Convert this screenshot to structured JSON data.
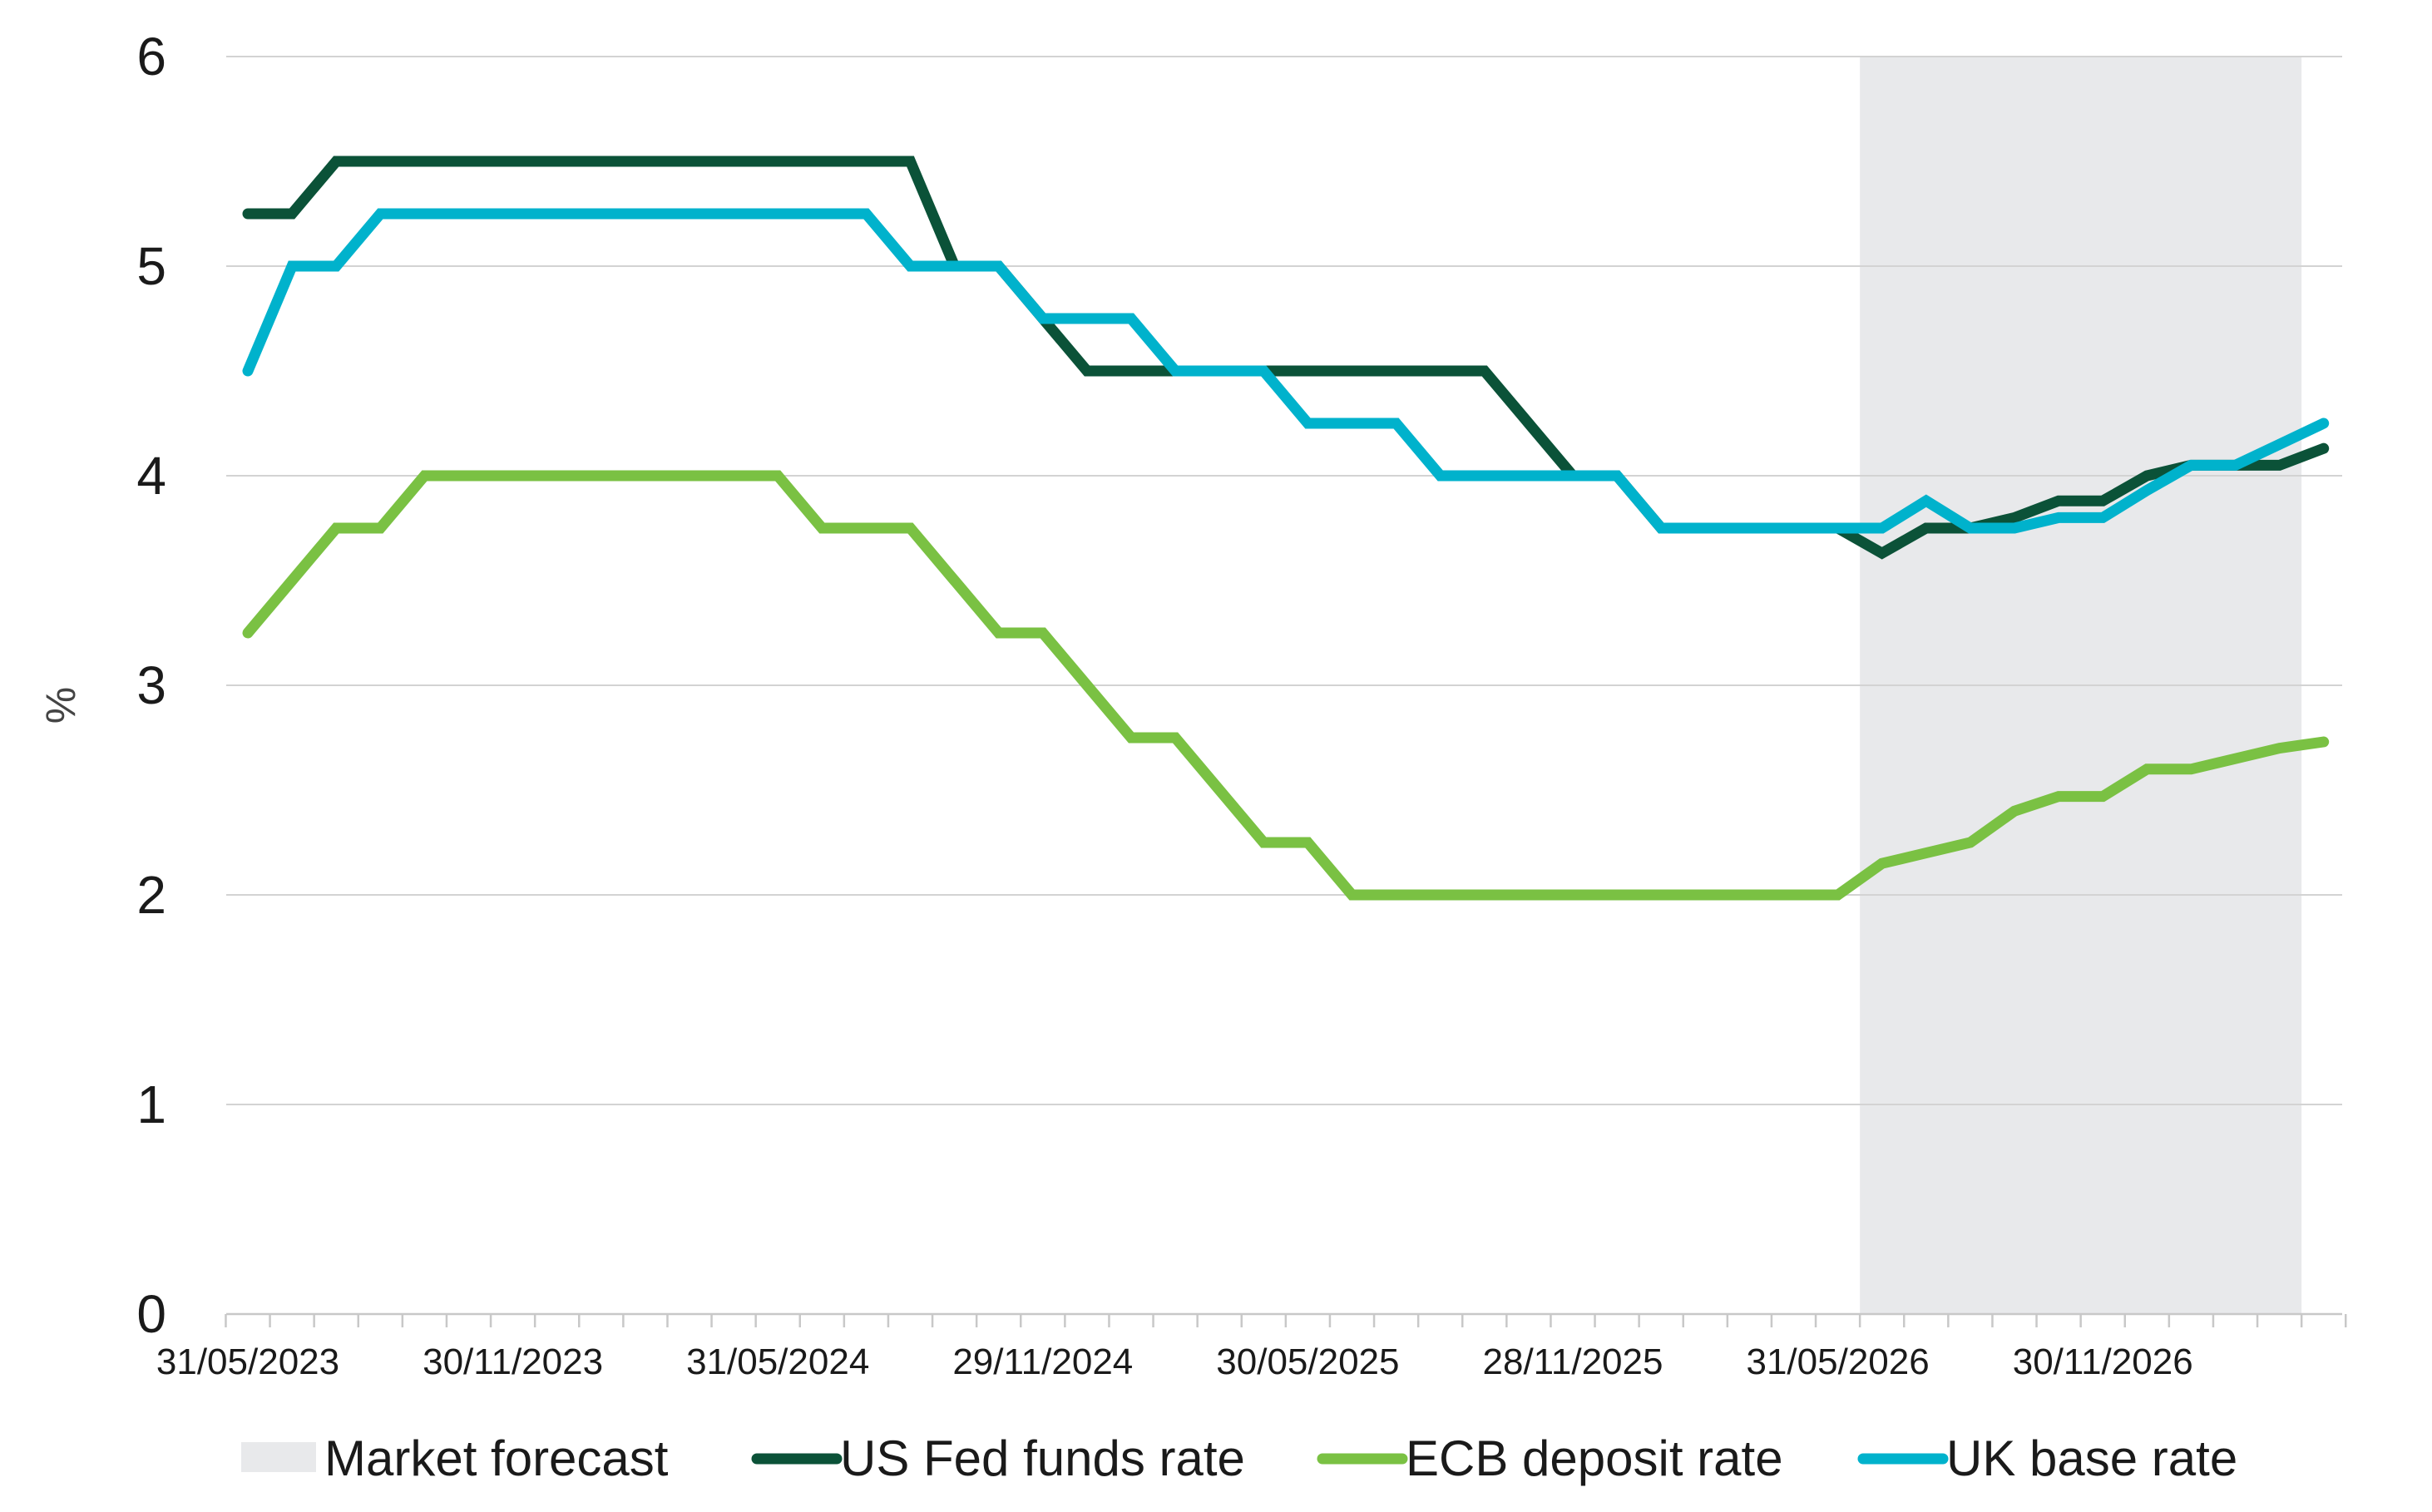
{
  "chart_data": {
    "type": "line",
    "title": "",
    "xlabel": "",
    "ylabel": "%",
    "ylim": [
      0,
      6
    ],
    "yticks": [
      "0",
      "1",
      "2",
      "3",
      "4",
      "5",
      "6"
    ],
    "xtick_labels": [
      "31/05/2023",
      "30/11/2023",
      "31/05/2024",
      "29/11/2024",
      "30/05/2025",
      "28/11/2025",
      "31/05/2026",
      "30/11/2026"
    ],
    "x": [
      "31/05/2023",
      "30/06/2023",
      "31/07/2023",
      "31/08/2023",
      "30/09/2023",
      "31/10/2023",
      "30/11/2023",
      "31/12/2023",
      "31/01/2024",
      "29/02/2024",
      "31/03/2024",
      "30/04/2024",
      "31/05/2024",
      "30/06/2024",
      "31/07/2024",
      "31/08/2024",
      "30/09/2024",
      "31/10/2024",
      "29/11/2024",
      "31/12/2024",
      "31/01/2025",
      "28/02/2025",
      "31/03/2025",
      "30/04/2025",
      "30/05/2025",
      "30/06/2025",
      "31/07/2025",
      "31/08/2025",
      "30/09/2025",
      "31/10/2025",
      "28/11/2025",
      "31/12/2025",
      "31/01/2026",
      "28/02/2026",
      "31/03/2026",
      "30/04/2026",
      "31/05/2026",
      "30/06/2026",
      "31/07/2026",
      "31/08/2026",
      "30/09/2026",
      "31/10/2026",
      "30/11/2026",
      "31/12/2026",
      "31/01/2027",
      "28/02/2027",
      "31/03/2027",
      "30/04/2027"
    ],
    "forecast_start": "30/06/2026",
    "forecast_end": "31/03/2027",
    "grid": true,
    "legend_position": "bottom",
    "series": [
      {
        "name": "US Fed funds rate",
        "color": "#0b5238",
        "values": [
          5.25,
          5.25,
          5.5,
          5.5,
          5.5,
          5.5,
          5.5,
          5.5,
          5.5,
          5.5,
          5.5,
          5.5,
          5.5,
          5.5,
          5.5,
          5.5,
          5.0,
          5.0,
          4.75,
          4.5,
          4.5,
          4.5,
          4.5,
          4.5,
          4.5,
          4.5,
          4.5,
          4.5,
          4.5,
          4.25,
          4.0,
          4.0,
          3.75,
          3.75,
          3.75,
          3.75,
          3.75,
          3.63,
          3.75,
          3.75,
          3.8,
          3.88,
          3.88,
          4.0,
          4.05,
          4.05,
          4.05,
          4.13
        ]
      },
      {
        "name": "ECB deposit rate",
        "color": "#7ac143",
        "values": [
          3.25,
          3.5,
          3.75,
          3.75,
          4.0,
          4.0,
          4.0,
          4.0,
          4.0,
          4.0,
          4.0,
          4.0,
          4.0,
          3.75,
          3.75,
          3.75,
          3.5,
          3.25,
          3.25,
          3.0,
          2.75,
          2.75,
          2.5,
          2.25,
          2.25,
          2.0,
          2.0,
          2.0,
          2.0,
          2.0,
          2.0,
          2.0,
          2.0,
          2.0,
          2.0,
          2.0,
          2.0,
          2.15,
          2.2,
          2.25,
          2.4,
          2.47,
          2.47,
          2.6,
          2.6,
          2.65,
          2.7,
          2.73
        ]
      },
      {
        "name": "UK base rate",
        "color": "#00b2cc",
        "values": [
          4.5,
          5.0,
          5.0,
          5.25,
          5.25,
          5.25,
          5.25,
          5.25,
          5.25,
          5.25,
          5.25,
          5.25,
          5.25,
          5.25,
          5.25,
          5.0,
          5.0,
          5.0,
          4.75,
          4.75,
          4.75,
          4.5,
          4.5,
          4.5,
          4.25,
          4.25,
          4.25,
          4.0,
          4.0,
          4.0,
          4.0,
          4.0,
          3.75,
          3.75,
          3.75,
          3.75,
          3.75,
          3.75,
          3.88,
          3.75,
          3.75,
          3.8,
          3.8,
          3.93,
          4.05,
          4.05,
          4.15,
          4.25
        ]
      }
    ],
    "legend": [
      {
        "label": "Market forecast",
        "kind": "patch",
        "color": "#e8e9eb"
      },
      {
        "label": "US Fed funds rate",
        "kind": "line",
        "color": "#0b5238"
      },
      {
        "label": "ECB deposit rate",
        "kind": "line",
        "color": "#7ac143"
      },
      {
        "label": "UK base rate",
        "kind": "line",
        "color": "#00b2cc"
      }
    ]
  }
}
